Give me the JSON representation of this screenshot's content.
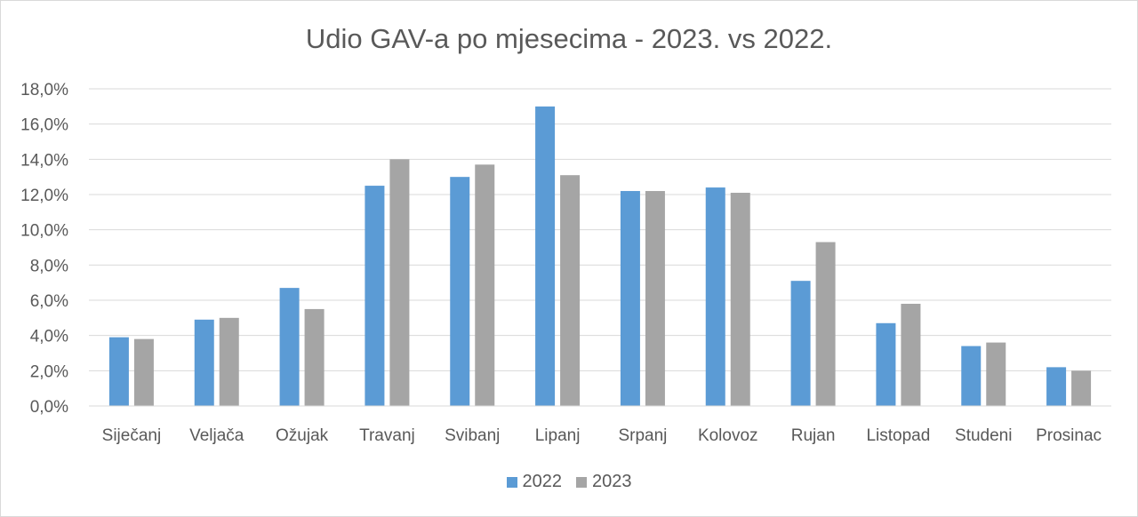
{
  "chart_data": {
    "type": "bar",
    "title": "Udio GAV-a po mjesecima - 2023. vs 2022.",
    "xlabel": "",
    "ylabel": "",
    "categories": [
      "Siječanj",
      "Veljača",
      "Ožujak",
      "Travanj",
      "Svibanj",
      "Lipanj",
      "Srpanj",
      "Kolovoz",
      "Rujan",
      "Listopad",
      "Studeni",
      "Prosinac"
    ],
    "series": [
      {
        "name": "2022",
        "color": "#5b9bd5",
        "values": [
          3.9,
          4.9,
          6.7,
          12.5,
          13.0,
          17.0,
          12.2,
          12.4,
          7.1,
          4.7,
          3.4,
          2.2
        ]
      },
      {
        "name": "2023",
        "color": "#a5a5a5",
        "values": [
          3.8,
          5.0,
          5.5,
          14.0,
          13.7,
          13.1,
          12.2,
          12.1,
          9.3,
          5.8,
          3.6,
          2.0
        ]
      }
    ],
    "ylim": [
      0,
      18
    ],
    "yticks": [
      "0,0%",
      "2,0%",
      "4,0%",
      "6,0%",
      "8,0%",
      "10,0%",
      "12,0%",
      "14,0%",
      "16,0%",
      "18,0%"
    ],
    "grid": true,
    "legend_position": "bottom"
  }
}
